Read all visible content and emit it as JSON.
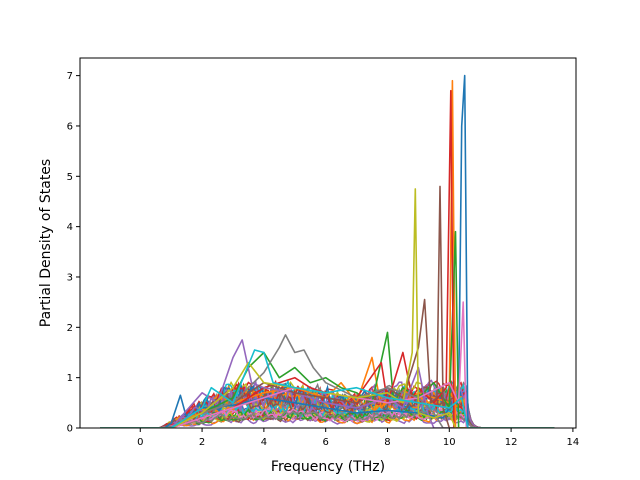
{
  "chart_data": {
    "type": "line",
    "title": "",
    "xlabel": "Frequency (THz)",
    "ylabel": "Partial Density of States",
    "xlim": [
      -1.95,
      14.1
    ],
    "ylim": [
      0,
      7.35
    ],
    "xticks": [
      0,
      2,
      4,
      6,
      8,
      10,
      12,
      14
    ],
    "yticks": [
      0,
      1,
      2,
      3,
      4,
      5,
      6,
      7
    ],
    "grid": false,
    "legend": "none",
    "x_data_range": [
      -1.3,
      13.4
    ],
    "series_count": 48,
    "palette": [
      "#1f77b4",
      "#ff7f0e",
      "#2ca02c",
      "#d62728",
      "#9467bd",
      "#8c564b",
      "#e377c2",
      "#7f7f7f",
      "#bcbd22",
      "#17becf"
    ],
    "series": [
      {
        "color": "#1f77b4",
        "points": [
          [
            -1.3,
            0
          ],
          [
            0.8,
            0
          ],
          [
            1.0,
            0.1
          ],
          [
            1.3,
            0.65
          ],
          [
            1.5,
            0.2
          ],
          [
            2.0,
            0.4
          ],
          [
            3.0,
            0.45
          ],
          [
            4.0,
            0.6
          ],
          [
            5.0,
            0.5
          ],
          [
            6.0,
            0.4
          ],
          [
            7.0,
            0.3
          ],
          [
            8.0,
            0.35
          ],
          [
            9.0,
            0.3
          ],
          [
            9.8,
            0.2
          ],
          [
            10.0,
            0.4
          ],
          [
            10.3,
            0.5
          ],
          [
            10.4,
            6.0
          ],
          [
            10.5,
            7.0
          ],
          [
            10.6,
            0
          ],
          [
            13.4,
            0
          ]
        ]
      },
      {
        "color": "#ff7f0e",
        "points": [
          [
            -1.3,
            0
          ],
          [
            1.0,
            0
          ],
          [
            1.5,
            0.2
          ],
          [
            2.0,
            0.3
          ],
          [
            3.0,
            0.5
          ],
          [
            4.0,
            0.7
          ],
          [
            5.0,
            0.8
          ],
          [
            6.0,
            0.6
          ],
          [
            6.5,
            0.9
          ],
          [
            7.0,
            0.5
          ],
          [
            7.5,
            1.4
          ],
          [
            7.8,
            0.4
          ],
          [
            8.0,
            0.6
          ],
          [
            8.5,
            0.5
          ],
          [
            9.0,
            0.7
          ],
          [
            9.5,
            0.6
          ],
          [
            10.0,
            0.5
          ],
          [
            10.1,
            6.9
          ],
          [
            10.2,
            0
          ],
          [
            13.4,
            0
          ]
        ]
      },
      {
        "color": "#2ca02c",
        "points": [
          [
            -1.3,
            0
          ],
          [
            1.0,
            0
          ],
          [
            2.0,
            0.3
          ],
          [
            3.0,
            0.6
          ],
          [
            3.5,
            1.2
          ],
          [
            4.0,
            1.5
          ],
          [
            4.5,
            1.0
          ],
          [
            5.0,
            1.2
          ],
          [
            5.5,
            0.9
          ],
          [
            6.0,
            1.0
          ],
          [
            6.5,
            0.8
          ],
          [
            7.0,
            0.7
          ],
          [
            7.5,
            0.5
          ],
          [
            8.0,
            1.9
          ],
          [
            8.2,
            0.5
          ],
          [
            8.5,
            0.8
          ],
          [
            9.0,
            0.6
          ],
          [
            9.5,
            0.9
          ],
          [
            10.0,
            0.4
          ],
          [
            10.2,
            3.9
          ],
          [
            10.3,
            0
          ],
          [
            13.4,
            0
          ]
        ]
      },
      {
        "color": "#d62728",
        "points": [
          [
            -1.3,
            0
          ],
          [
            1.0,
            0
          ],
          [
            2.0,
            0.2
          ],
          [
            3.0,
            0.4
          ],
          [
            4.0,
            0.8
          ],
          [
            5.0,
            1.0
          ],
          [
            5.5,
            0.8
          ],
          [
            6.0,
            0.7
          ],
          [
            7.0,
            0.6
          ],
          [
            7.8,
            1.3
          ],
          [
            8.0,
            0.5
          ],
          [
            8.5,
            1.5
          ],
          [
            8.8,
            0.6
          ],
          [
            9.0,
            0.8
          ],
          [
            9.5,
            0.5
          ],
          [
            9.9,
            0.8
          ],
          [
            10.05,
            6.7
          ],
          [
            10.15,
            0
          ],
          [
            13.4,
            0
          ]
        ]
      },
      {
        "color": "#9467bd",
        "points": [
          [
            -1.3,
            0
          ],
          [
            1.0,
            0
          ],
          [
            2.0,
            0.7
          ],
          [
            2.5,
            0.5
          ],
          [
            3.0,
            1.4
          ],
          [
            3.3,
            1.75
          ],
          [
            3.6,
            0.9
          ],
          [
            4.0,
            0.8
          ],
          [
            5.0,
            0.7
          ],
          [
            6.0,
            0.5
          ],
          [
            7.0,
            0.4
          ],
          [
            8.0,
            0.6
          ],
          [
            8.5,
            0.4
          ],
          [
            9.0,
            1.2
          ],
          [
            9.3,
            0.3
          ],
          [
            9.5,
            0
          ],
          [
            13.4,
            0
          ]
        ]
      },
      {
        "color": "#8c564b",
        "points": [
          [
            -1.3,
            0
          ],
          [
            1.0,
            0
          ],
          [
            2.0,
            0.3
          ],
          [
            3.0,
            0.5
          ],
          [
            4.0,
            0.9
          ],
          [
            5.0,
            0.7
          ],
          [
            6.0,
            0.6
          ],
          [
            7.0,
            0.5
          ],
          [
            8.0,
            0.8
          ],
          [
            8.5,
            0.6
          ],
          [
            9.0,
            1.6
          ],
          [
            9.2,
            2.55
          ],
          [
            9.4,
            0.5
          ],
          [
            9.6,
            0.6
          ],
          [
            9.7,
            4.8
          ],
          [
            9.8,
            0.4
          ],
          [
            10.0,
            0
          ],
          [
            13.4,
            0
          ]
        ]
      },
      {
        "color": "#e377c2",
        "points": [
          [
            -1.3,
            0
          ],
          [
            1.0,
            0
          ],
          [
            2.0,
            0.2
          ],
          [
            3.0,
            0.4
          ],
          [
            4.0,
            0.6
          ],
          [
            5.0,
            0.8
          ],
          [
            6.0,
            0.7
          ],
          [
            7.0,
            0.6
          ],
          [
            8.0,
            0.5
          ],
          [
            9.0,
            0.6
          ],
          [
            10.0,
            0.9
          ],
          [
            10.3,
            0.5
          ],
          [
            10.45,
            2.5
          ],
          [
            10.55,
            0
          ],
          [
            13.4,
            0
          ]
        ]
      },
      {
        "color": "#7f7f7f",
        "points": [
          [
            -1.3,
            0
          ],
          [
            1.0,
            0
          ],
          [
            2.0,
            0.3
          ],
          [
            3.0,
            0.5
          ],
          [
            4.0,
            1.1
          ],
          [
            4.5,
            1.6
          ],
          [
            4.7,
            1.85
          ],
          [
            5.0,
            1.5
          ],
          [
            5.3,
            1.55
          ],
          [
            5.6,
            1.2
          ],
          [
            6.0,
            0.9
          ],
          [
            7.0,
            0.6
          ],
          [
            8.0,
            0.8
          ],
          [
            9.0,
            0.6
          ],
          [
            9.5,
            0.3
          ],
          [
            9.8,
            0
          ],
          [
            13.4,
            0
          ]
        ]
      },
      {
        "color": "#bcbd22",
        "points": [
          [
            -1.3,
            0
          ],
          [
            1.0,
            0
          ],
          [
            2.0,
            0.3
          ],
          [
            3.0,
            0.8
          ],
          [
            3.5,
            1.3
          ],
          [
            4.0,
            0.9
          ],
          [
            5.0,
            0.8
          ],
          [
            6.0,
            0.7
          ],
          [
            7.0,
            0.6
          ],
          [
            8.0,
            0.7
          ],
          [
            8.5,
            0.5
          ],
          [
            8.8,
            1.5
          ],
          [
            8.9,
            4.75
          ],
          [
            9.0,
            0.3
          ],
          [
            9.5,
            0.2
          ],
          [
            10.0,
            0.3
          ],
          [
            10.2,
            0
          ],
          [
            13.4,
            0
          ]
        ]
      },
      {
        "color": "#17becf",
        "points": [
          [
            -1.3,
            0
          ],
          [
            1.0,
            0
          ],
          [
            2.0,
            0.4
          ],
          [
            2.3,
            0.8
          ],
          [
            3.0,
            0.5
          ],
          [
            3.7,
            1.55
          ],
          [
            4.0,
            1.5
          ],
          [
            4.3,
            0.9
          ],
          [
            5.0,
            0.8
          ],
          [
            6.0,
            0.7
          ],
          [
            7.0,
            0.8
          ],
          [
            8.0,
            0.6
          ],
          [
            9.0,
            0.5
          ],
          [
            10.0,
            0.4
          ],
          [
            10.4,
            0.6
          ],
          [
            10.6,
            0
          ],
          [
            13.4,
            0
          ]
        ]
      }
    ]
  }
}
